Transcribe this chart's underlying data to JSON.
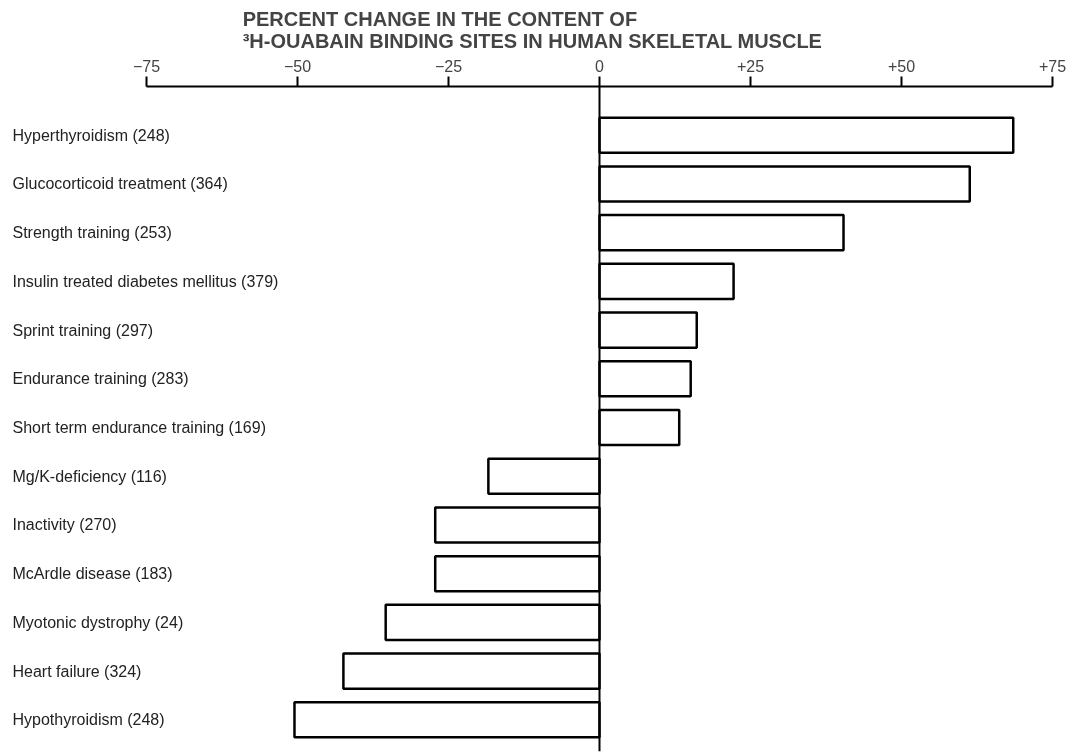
{
  "chart_data": {
    "type": "bar",
    "orientation": "horizontal",
    "title": "PERCENT CHANGE IN THE CONTENT OF\n³H-OUABAIN BINDING SITES IN HUMAN SKELETAL MUSCLE",
    "categories": [
      "Hyperthyroidism (248)",
      "Glucocorticoid treatment (364)",
      "Strength training (253)",
      "Insulin treated diabetes mellitus (379)",
      "Sprint training (297)",
      "Endurance training (283)",
      "Short term endurance training (169)",
      "Mg/K-deficiency (116)",
      "Inactivity (270)",
      "McArdle disease (183)",
      "Myotonic dystrophy (24)",
      "Heart failure (324)",
      "Hypothyroidism (248)"
    ],
    "values": [
      68.5,
      61.3,
      40.4,
      22.2,
      16.1,
      15.1,
      13.2,
      -18.4,
      -27.2,
      -27.2,
      -35.4,
      -42.4,
      -50.5
    ],
    "color": "#ffffff",
    "xlim": [
      -75,
      75
    ],
    "xticks": [
      -75,
      -50,
      -25,
      0,
      {
        "value": 25,
        "label": "+25"
      },
      {
        "value": 50,
        "label": "+50"
      },
      {
        "value": 75,
        "label": "+75"
      }
    ],
    "grid": false,
    "ref_lines": [
      {
        "axis": "x",
        "value": 0,
        "color": "#000000",
        "line_style": "solid"
      }
    ]
  }
}
